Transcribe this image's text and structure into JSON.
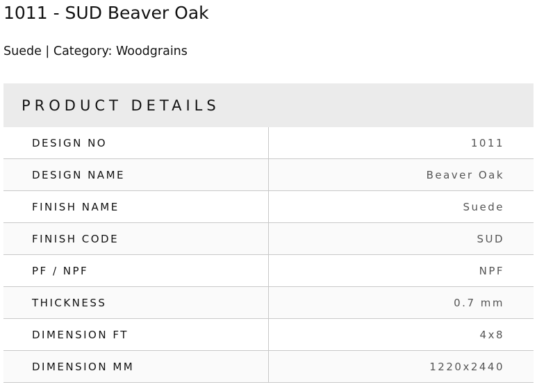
{
  "title": "1011 - SUD Beaver Oak",
  "subtitle": "Suede | Category: Woodgrains",
  "details": {
    "heading": "PRODUCT DETAILS",
    "rows": [
      {
        "label": "DESIGN NO",
        "value": "1011"
      },
      {
        "label": "DESIGN NAME",
        "value": "Beaver Oak"
      },
      {
        "label": "FINISH NAME",
        "value": "Suede"
      },
      {
        "label": "FINISH CODE",
        "value": "SUD"
      },
      {
        "label": "PF / NPF",
        "value": "NPF"
      },
      {
        "label": "THICKNESS",
        "value": "0.7 mm"
      },
      {
        "label": "DIMENSION FT",
        "value": "4x8"
      },
      {
        "label": "DIMENSION MM",
        "value": "1220x2440"
      }
    ]
  }
}
